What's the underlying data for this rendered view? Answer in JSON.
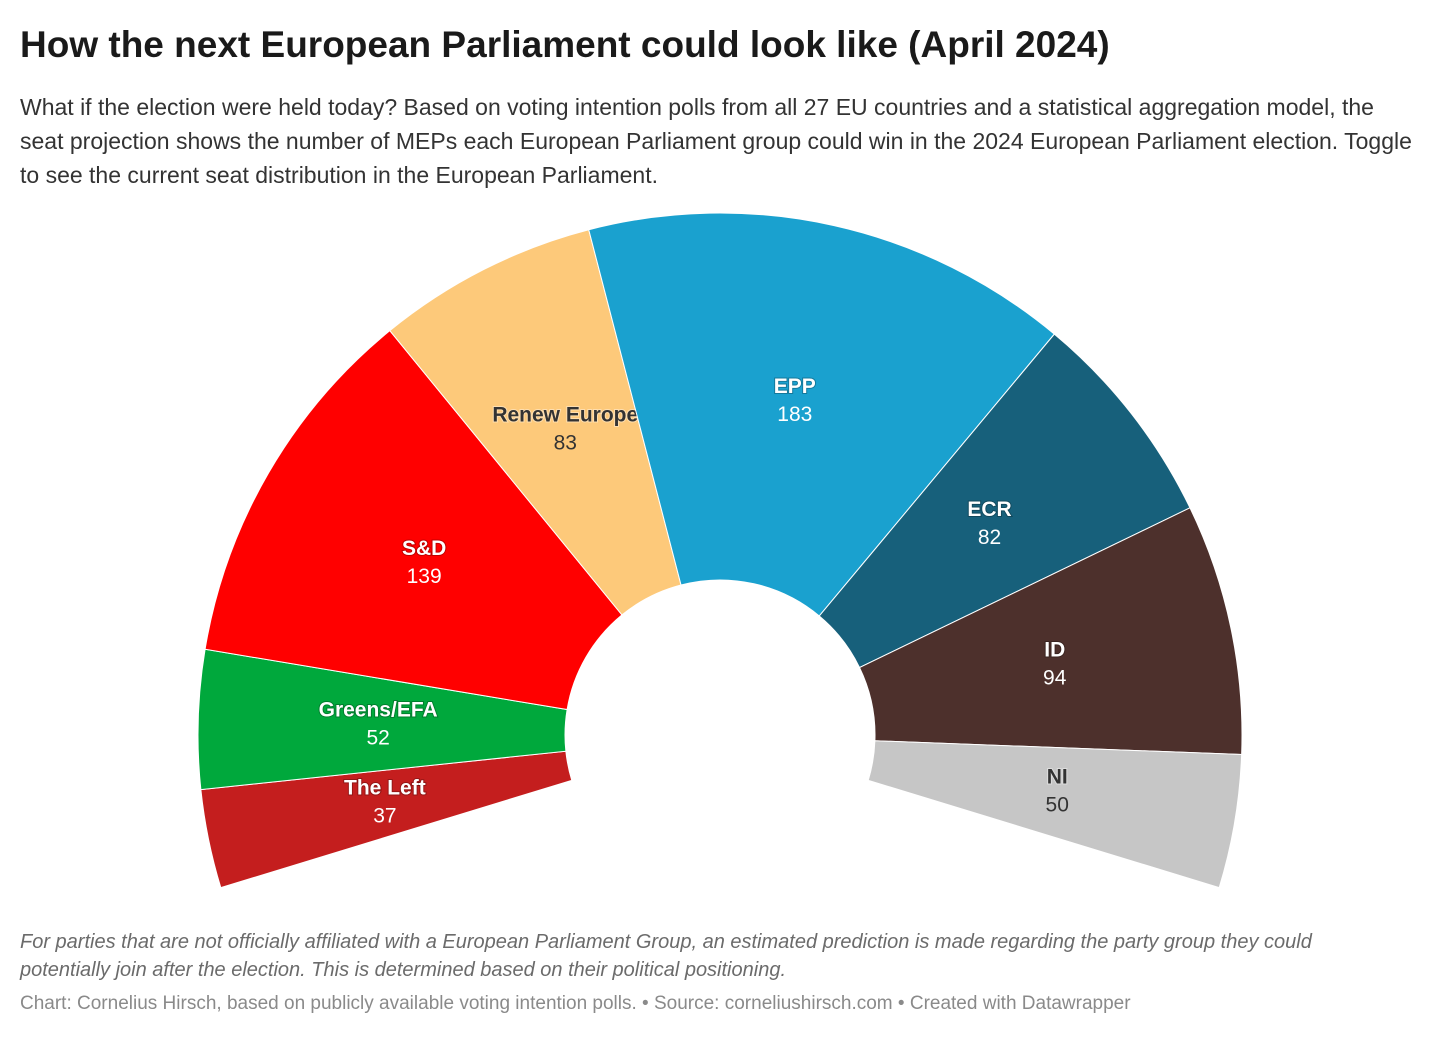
{
  "chart_data": {
    "type": "pie",
    "title": "How the next European Parliament could look like (April 2024)",
    "subtitle": "What if the election were held today? Based on voting intention polls from all 27 EU countries and a statistical aggregation model, the seat projection shows the number of MEPs each European Parliament group could win in the 2024 European Parliament election. Toggle to see the current seat distribution in the European Parliament.",
    "categories": [
      "The Left",
      "Greens/EFA",
      "S&D",
      "Renew Europe",
      "EPP",
      "ECR",
      "ID",
      "NI"
    ],
    "values": [
      37,
      52,
      139,
      83,
      183,
      82,
      94,
      50
    ],
    "colors": [
      "#c41e1e",
      "#00a83c",
      "#ff0000",
      "#fdc97a",
      "#1aa1cf",
      "#17607b",
      "#4d302c",
      "#c6c6c6"
    ],
    "note": "For parties that are not officially affiliated with a European Parliament Group, an estimated prediction is made regarding the party group they could potentially join after the election. This is determined based on their political positioning.",
    "credit": "Chart: Cornelius Hirsch, based on publicly available voting intention polls. • Source: corneliushirsch.com • Created with Datawrapper"
  }
}
